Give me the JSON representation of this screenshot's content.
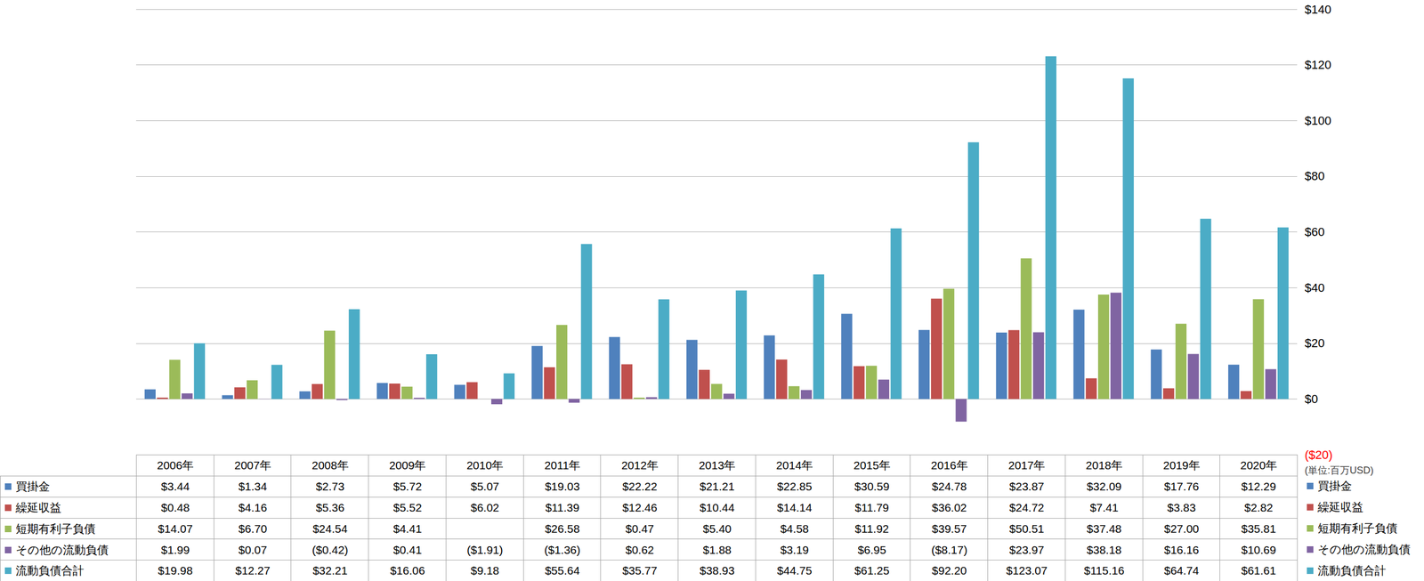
{
  "chart_data": {
    "type": "bar",
    "categories": [
      "2006年",
      "2007年",
      "2008年",
      "2009年",
      "2010年",
      "2011年",
      "2012年",
      "2013年",
      "2014年",
      "2015年",
      "2016年",
      "2017年",
      "2018年",
      "2019年",
      "2020年"
    ],
    "series": [
      {
        "name": "買掛金",
        "color": "#4f81bd",
        "values": [
          3.44,
          1.34,
          2.73,
          5.72,
          5.07,
          19.03,
          22.22,
          21.21,
          22.85,
          30.59,
          24.78,
          23.87,
          32.09,
          17.76,
          12.29
        ],
        "value_labels": [
          "$3.44",
          "$1.34",
          "$2.73",
          "$5.72",
          "$5.07",
          "$19.03",
          "$22.22",
          "$21.21",
          "$22.85",
          "$30.59",
          "$24.78",
          "$23.87",
          "$32.09",
          "$17.76",
          "$12.29"
        ]
      },
      {
        "name": "繰延収益",
        "color": "#c0504d",
        "values": [
          0.48,
          4.16,
          5.36,
          5.52,
          6.02,
          11.39,
          12.46,
          10.44,
          14.14,
          11.79,
          36.02,
          24.72,
          7.41,
          3.83,
          2.82
        ],
        "value_labels": [
          "$0.48",
          "$4.16",
          "$5.36",
          "$5.52",
          "$6.02",
          "$11.39",
          "$12.46",
          "$10.44",
          "$14.14",
          "$11.79",
          "$36.02",
          "$24.72",
          "$7.41",
          "$3.83",
          "$2.82"
        ]
      },
      {
        "name": "短期有利子負債",
        "color": "#9bbb59",
        "values": [
          14.07,
          6.7,
          24.54,
          4.41,
          null,
          26.58,
          0.47,
          5.4,
          4.58,
          11.92,
          39.57,
          50.51,
          37.48,
          27.0,
          35.81
        ],
        "value_labels": [
          "$14.07",
          "$6.70",
          "$24.54",
          "$4.41",
          null,
          "$26.58",
          "$0.47",
          "$5.40",
          "$4.58",
          "$11.92",
          "$39.57",
          "$50.51",
          "$37.48",
          "$27.00",
          "$35.81"
        ]
      },
      {
        "name": "その他の流動負債",
        "color": "#8064a2",
        "values": [
          1.99,
          0.07,
          -0.42,
          0.41,
          -1.91,
          -1.36,
          0.62,
          1.88,
          3.19,
          6.95,
          -8.17,
          23.97,
          38.18,
          16.16,
          10.69
        ],
        "value_labels": [
          "$1.99",
          "$0.07",
          "($0.42)",
          "$0.41",
          "($1.91)",
          "($1.36)",
          "$0.62",
          "$1.88",
          "$3.19",
          "$6.95",
          "($8.17)",
          "$23.97",
          "$38.18",
          "$16.16",
          "$10.69"
        ]
      },
      {
        "name": "流動負債合計",
        "color": "#4bacc6",
        "values": [
          19.98,
          12.27,
          32.21,
          16.06,
          9.18,
          55.64,
          35.77,
          38.93,
          44.75,
          61.25,
          92.2,
          123.07,
          115.16,
          64.74,
          61.61
        ],
        "value_labels": [
          "$19.98",
          "$12.27",
          "$32.21",
          "$16.06",
          "$9.18",
          "$55.64",
          "$35.77",
          "$38.93",
          "$44.75",
          "$61.25",
          "$92.20",
          "$123.07",
          "$115.16",
          "$64.74",
          "$61.61"
        ]
      }
    ],
    "ylim": [
      -20,
      140
    ],
    "yticks": [
      {
        "value": -20,
        "label": "($20)"
      },
      {
        "value": 0,
        "label": "$0"
      },
      {
        "value": 20,
        "label": "$20"
      },
      {
        "value": 40,
        "label": "$40"
      },
      {
        "value": 60,
        "label": "$60"
      },
      {
        "value": 80,
        "label": "$80"
      },
      {
        "value": 100,
        "label": "$100"
      },
      {
        "value": 120,
        "label": "$120"
      },
      {
        "value": 140,
        "label": "$140"
      }
    ],
    "annotation": "(単位:百万USD)",
    "grid": true,
    "data_labels": true
  }
}
